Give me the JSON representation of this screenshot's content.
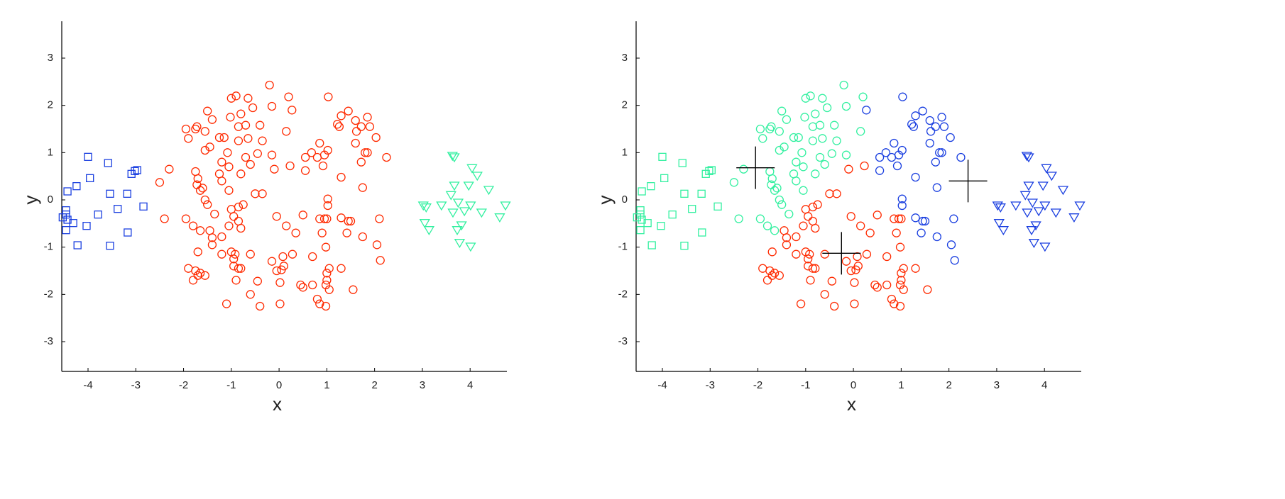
{
  "chart_data": [
    {
      "type": "scatter",
      "xlabel": "x",
      "ylabel": "y",
      "xlim": [
        -4.55,
        4.77
      ],
      "ylim": [
        -3.63,
        3.78
      ],
      "xticks": [
        -4,
        -3,
        -2,
        -1,
        0,
        1,
        2,
        3,
        4
      ],
      "yticks": [
        -3,
        -2,
        -1,
        0,
        1,
        2,
        3
      ],
      "series": [
        {
          "marker": "square",
          "color": "#1a3fe0",
          "x": [
            -4.0,
            -3.58,
            -3.09,
            -3.02,
            -2.97,
            -4.24,
            -3.96,
            -4.43,
            -3.54,
            -3.18,
            -3.38,
            -3.79,
            -4.46,
            -4.46,
            -4.53,
            -4.43,
            -4.31,
            -4.03,
            -4.46,
            -3.17,
            -4.22,
            -3.54,
            -2.84
          ],
          "y": [
            0.91,
            0.78,
            0.55,
            0.61,
            0.63,
            0.29,
            0.46,
            0.18,
            0.13,
            0.13,
            -0.19,
            -0.31,
            -0.22,
            -0.31,
            -0.37,
            -0.42,
            -0.49,
            -0.55,
            -0.64,
            -0.69,
            -0.96,
            -0.97,
            -0.14
          ]
        },
        {
          "marker": "circle",
          "color": "#ff2a00",
          "x": [
            -0.2,
            0.2,
            -1.0,
            -0.9,
            -0.65,
            -0.55,
            -0.15,
            -1.5,
            -1.4,
            -1.02,
            -0.8,
            -0.7,
            -0.4,
            -0.85,
            -1.95,
            -1.75,
            -1.72,
            -1.9,
            -1.55,
            -1.25,
            -1.15,
            -0.85,
            -0.65,
            -0.35,
            0.15,
            -1.45,
            -1.55,
            -1.08,
            -0.7,
            -0.45,
            -0.15,
            -2.3,
            -1.75,
            -1.7,
            -1.25,
            -1.2,
            -1.2,
            -1.05,
            -0.6,
            -0.8,
            -1.72,
            -1.6,
            -1.65,
            -1.05,
            -2.5,
            -1.55,
            -1.5,
            -1.35,
            -1.95,
            -2.4,
            -1.8,
            -1.65,
            1.03,
            0.27,
            1.45,
            1.3,
            1.85,
            1.22,
            1.26,
            1.6,
            1.72,
            1.9,
            2.03,
            1.62,
            0.85,
            0.55,
            0.8,
            0.95,
            1.02,
            0.68,
            1.8,
            1.85,
            1.72,
            2.25,
            1.6,
            0.55,
            0.92,
            1.3,
            1.75,
            1.02,
            1.02,
            1.3,
            1.45,
            1.5,
            2.1,
            1.42,
            1.75,
            2.05,
            2.12,
            -0.1,
            0.23,
            -0.5,
            -0.35,
            -1.0,
            -0.85,
            -0.75,
            -0.95,
            -0.85,
            -0.05,
            0.5,
            0.85,
            0.95,
            1.0,
            -1.45,
            -1.05,
            -0.8,
            0.15,
            0.35,
            -1.4,
            -1.2,
            -1.4,
            0.9,
            -1.7,
            -1.2,
            -1.0,
            -0.95,
            -0.92,
            -0.6,
            0.08,
            0.28,
            0.7,
            0.98,
            -0.95,
            -0.85,
            -0.8,
            -0.15,
            0.1,
            0.05,
            -0.05,
            1.05,
            1.0,
            1.3,
            -1.9,
            -1.75,
            -1.7,
            -1.65,
            -1.55,
            -1.8,
            -0.9,
            -0.45,
            0.02,
            0.45,
            0.5,
            0.7,
            1.0,
            0.98,
            1.05,
            1.55,
            0.8,
            0.85,
            0.98,
            -1.1,
            -0.4,
            0.02,
            -0.6
          ],
          "y": [
            2.43,
            2.18,
            2.15,
            2.2,
            2.15,
            1.95,
            1.98,
            1.88,
            1.7,
            1.75,
            1.82,
            1.58,
            1.58,
            1.55,
            1.5,
            1.5,
            1.55,
            1.3,
            1.45,
            1.32,
            1.32,
            1.25,
            1.3,
            1.25,
            1.45,
            1.12,
            1.05,
            1.0,
            0.9,
            0.98,
            0.95,
            0.65,
            0.6,
            0.45,
            0.55,
            0.4,
            0.8,
            0.7,
            0.75,
            0.55,
            0.32,
            0.25,
            0.2,
            0.2,
            0.37,
            0.0,
            -0.1,
            -0.3,
            -0.4,
            -0.4,
            -0.55,
            -0.65,
            2.18,
            1.9,
            1.88,
            1.78,
            1.75,
            1.6,
            1.55,
            1.68,
            1.55,
            1.55,
            1.32,
            1.45,
            1.2,
            0.9,
            0.9,
            0.95,
            1.05,
            1.0,
            1.0,
            1.0,
            0.8,
            0.9,
            1.2,
            0.62,
            0.72,
            0.48,
            0.26,
            0.02,
            -0.12,
            -0.38,
            -0.45,
            -0.45,
            -0.4,
            -0.7,
            -0.78,
            -0.95,
            -1.28,
            0.65,
            0.72,
            0.13,
            0.13,
            -0.2,
            -0.15,
            -0.1,
            -0.35,
            -0.45,
            -0.35,
            -0.32,
            -0.4,
            -0.4,
            -0.4,
            -0.65,
            -0.55,
            -0.6,
            -0.55,
            -0.7,
            -0.8,
            -0.78,
            -0.95,
            -0.7,
            -1.1,
            -1.15,
            -1.1,
            -1.25,
            -1.15,
            -1.15,
            -1.2,
            -1.15,
            -1.2,
            -1.0,
            -1.4,
            -1.45,
            -1.45,
            -1.3,
            -1.4,
            -1.48,
            -1.5,
            -1.45,
            -1.55,
            -1.45,
            -1.45,
            -1.5,
            -1.6,
            -1.55,
            -1.6,
            -1.7,
            -1.7,
            -1.72,
            -1.75,
            -1.8,
            -1.85,
            -1.8,
            -1.7,
            -1.8,
            -1.9,
            -1.9,
            -2.1,
            -2.2,
            -2.25,
            -2.2,
            -2.25,
            -2.2,
            -2.0
          ]
        },
        {
          "marker": "triangle-down",
          "color": "#33f0a0",
          "x": [
            3.63,
            3.67,
            4.04,
            4.15,
            3.02,
            3.08,
            3.6,
            3.67,
            3.97,
            4.39,
            3.4,
            3.75,
            4.01,
            4.74,
            3.88,
            4.24,
            3.05,
            3.14,
            3.82,
            3.73,
            4.62,
            3.78,
            4.01,
            3.64
          ],
          "y": [
            0.93,
            0.9,
            0.67,
            0.51,
            -0.12,
            -0.16,
            0.1,
            0.3,
            0.3,
            0.21,
            -0.12,
            -0.06,
            -0.12,
            -0.12,
            -0.24,
            -0.27,
            -0.49,
            -0.64,
            -0.54,
            -0.64,
            -0.37,
            -0.91,
            -0.99,
            -0.27
          ]
        }
      ]
    },
    {
      "type": "scatter",
      "xlabel": "x",
      "ylabel": "y",
      "xlim": [
        -4.55,
        4.77
      ],
      "ylim": [
        -3.63,
        3.78
      ],
      "xticks": [
        -4,
        -3,
        -2,
        -1,
        0,
        1,
        2,
        3,
        4
      ],
      "yticks": [
        -3,
        -2,
        -1,
        0,
        1,
        2,
        3
      ],
      "series": [
        {
          "marker": "square",
          "color": "#33f0a0",
          "x": [
            -4.0,
            -3.58,
            -3.09,
            -3.02,
            -2.97,
            -4.24,
            -3.96,
            -4.43,
            -3.54,
            -3.18,
            -3.38,
            -3.79,
            -4.46,
            -4.46,
            -4.53,
            -4.43,
            -4.31,
            -4.03,
            -4.46,
            -3.17,
            -4.22,
            -3.54,
            -2.84
          ],
          "y": [
            0.91,
            0.78,
            0.55,
            0.61,
            0.63,
            0.29,
            0.46,
            0.18,
            0.13,
            0.13,
            -0.19,
            -0.31,
            -0.22,
            -0.31,
            -0.37,
            -0.42,
            -0.49,
            -0.55,
            -0.64,
            -0.69,
            -0.96,
            -0.97,
            -0.14
          ]
        },
        {
          "marker": "circle",
          "color": "#33f0a0",
          "x": [
            -0.2,
            0.2,
            -1.0,
            -0.9,
            -0.65,
            -0.55,
            -0.15,
            -1.5,
            -1.4,
            -1.02,
            -0.8,
            -0.7,
            -0.4,
            -0.85,
            -1.95,
            -1.75,
            -1.72,
            -1.9,
            -1.55,
            -1.25,
            -1.15,
            -0.85,
            -0.65,
            -0.35,
            0.15,
            -1.45,
            -1.55,
            -1.08,
            -0.7,
            -0.45,
            -0.15,
            -2.3,
            -1.75,
            -1.7,
            -1.25,
            -1.2,
            -1.2,
            -1.05,
            -0.6,
            -0.8,
            -1.72,
            -1.6,
            -1.65,
            -1.05,
            -2.5,
            -1.55,
            -1.5,
            -1.35,
            -1.95,
            -2.4,
            -1.8,
            -1.65
          ],
          "y": [
            2.43,
            2.18,
            2.15,
            2.2,
            2.15,
            1.95,
            1.98,
            1.88,
            1.7,
            1.75,
            1.82,
            1.58,
            1.58,
            1.55,
            1.5,
            1.5,
            1.55,
            1.3,
            1.45,
            1.32,
            1.32,
            1.25,
            1.3,
            1.25,
            1.45,
            1.12,
            1.05,
            1.0,
            0.9,
            0.98,
            0.95,
            0.65,
            0.6,
            0.45,
            0.55,
            0.4,
            0.8,
            0.7,
            0.75,
            0.55,
            0.32,
            0.25,
            0.2,
            0.2,
            0.37,
            0.0,
            -0.1,
            -0.3,
            -0.4,
            -0.4,
            -0.55,
            -0.65
          ]
        },
        {
          "marker": "circle",
          "color": "#1a3fe0",
          "x": [
            1.03,
            0.27,
            1.45,
            1.3,
            1.85,
            1.22,
            1.26,
            1.6,
            1.72,
            1.9,
            2.03,
            1.62,
            0.85,
            0.55,
            0.8,
            0.95,
            1.02,
            0.68,
            1.8,
            1.85,
            1.72,
            2.25,
            1.6,
            0.55,
            0.92,
            1.3,
            1.75,
            1.02,
            1.02,
            1.3,
            1.45,
            1.5,
            2.1,
            1.42,
            1.75,
            2.05,
            2.12
          ],
          "y": [
            2.18,
            1.9,
            1.88,
            1.78,
            1.75,
            1.6,
            1.55,
            1.68,
            1.55,
            1.55,
            1.32,
            1.45,
            1.2,
            0.9,
            0.9,
            0.95,
            1.05,
            1.0,
            1.0,
            1.0,
            0.8,
            0.9,
            1.2,
            0.62,
            0.72,
            0.48,
            0.26,
            0.02,
            -0.12,
            -0.38,
            -0.45,
            -0.45,
            -0.4,
            -0.7,
            -0.78,
            -0.95,
            -1.28
          ]
        },
        {
          "marker": "circle",
          "color": "#ff2a00",
          "x": [
            -0.1,
            0.23,
            -0.5,
            -0.35,
            -1.0,
            -0.85,
            -0.75,
            -0.95,
            -0.85,
            -0.05,
            0.5,
            0.85,
            0.95,
            1.0,
            -1.45,
            -1.05,
            -0.8,
            0.15,
            0.35,
            -1.4,
            -1.2,
            -1.4,
            0.9,
            -1.7,
            -1.2,
            -1.0,
            -0.95,
            -0.92,
            -0.6,
            0.08,
            0.28,
            0.7,
            0.98,
            -0.95,
            -0.85,
            -0.8,
            -0.15,
            0.1,
            0.05,
            -0.05,
            1.05,
            1.0,
            1.3,
            -1.9,
            -1.75,
            -1.7,
            -1.65,
            -1.55,
            -1.8,
            -0.9,
            -0.45,
            0.02,
            0.45,
            0.5,
            0.7,
            1.0,
            0.98,
            1.05,
            1.55,
            0.8,
            0.85,
            0.98,
            -1.1,
            -0.4,
            0.02,
            -0.6
          ],
          "y": [
            0.65,
            0.72,
            0.13,
            0.13,
            -0.2,
            -0.15,
            -0.1,
            -0.35,
            -0.45,
            -0.35,
            -0.32,
            -0.4,
            -0.4,
            -0.4,
            -0.65,
            -0.55,
            -0.6,
            -0.55,
            -0.7,
            -0.8,
            -0.78,
            -0.95,
            -0.7,
            -1.1,
            -1.15,
            -1.1,
            -1.25,
            -1.15,
            -1.15,
            -1.2,
            -1.15,
            -1.2,
            -1.0,
            -1.4,
            -1.45,
            -1.45,
            -1.3,
            -1.4,
            -1.48,
            -1.5,
            -1.45,
            -1.55,
            -1.45,
            -1.45,
            -1.5,
            -1.6,
            -1.55,
            -1.6,
            -1.7,
            -1.7,
            -1.72,
            -1.75,
            -1.8,
            -1.85,
            -1.8,
            -1.7,
            -1.8,
            -1.9,
            -1.9,
            -2.1,
            -2.2,
            -2.25,
            -2.2,
            -2.25,
            -2.2,
            -2.0
          ]
        },
        {
          "marker": "triangle-down",
          "color": "#1a3fe0",
          "x": [
            3.63,
            3.67,
            4.04,
            4.15,
            3.02,
            3.08,
            3.6,
            3.67,
            3.97,
            4.39,
            3.4,
            3.75,
            4.01,
            4.74,
            3.88,
            4.24,
            3.05,
            3.14,
            3.82,
            3.73,
            4.62,
            3.78,
            4.01,
            3.64
          ],
          "y": [
            0.93,
            0.9,
            0.67,
            0.51,
            -0.12,
            -0.16,
            0.1,
            0.3,
            0.3,
            0.21,
            -0.12,
            -0.06,
            -0.12,
            -0.12,
            -0.24,
            -0.27,
            -0.49,
            -0.64,
            -0.54,
            -0.64,
            -0.37,
            -0.91,
            -0.99,
            -0.27
          ]
        },
        {
          "marker": "plus",
          "color": "#000000",
          "x": [
            -2.05,
            -0.25,
            2.4
          ],
          "y": [
            0.68,
            -1.13,
            0.4
          ]
        }
      ]
    }
  ]
}
